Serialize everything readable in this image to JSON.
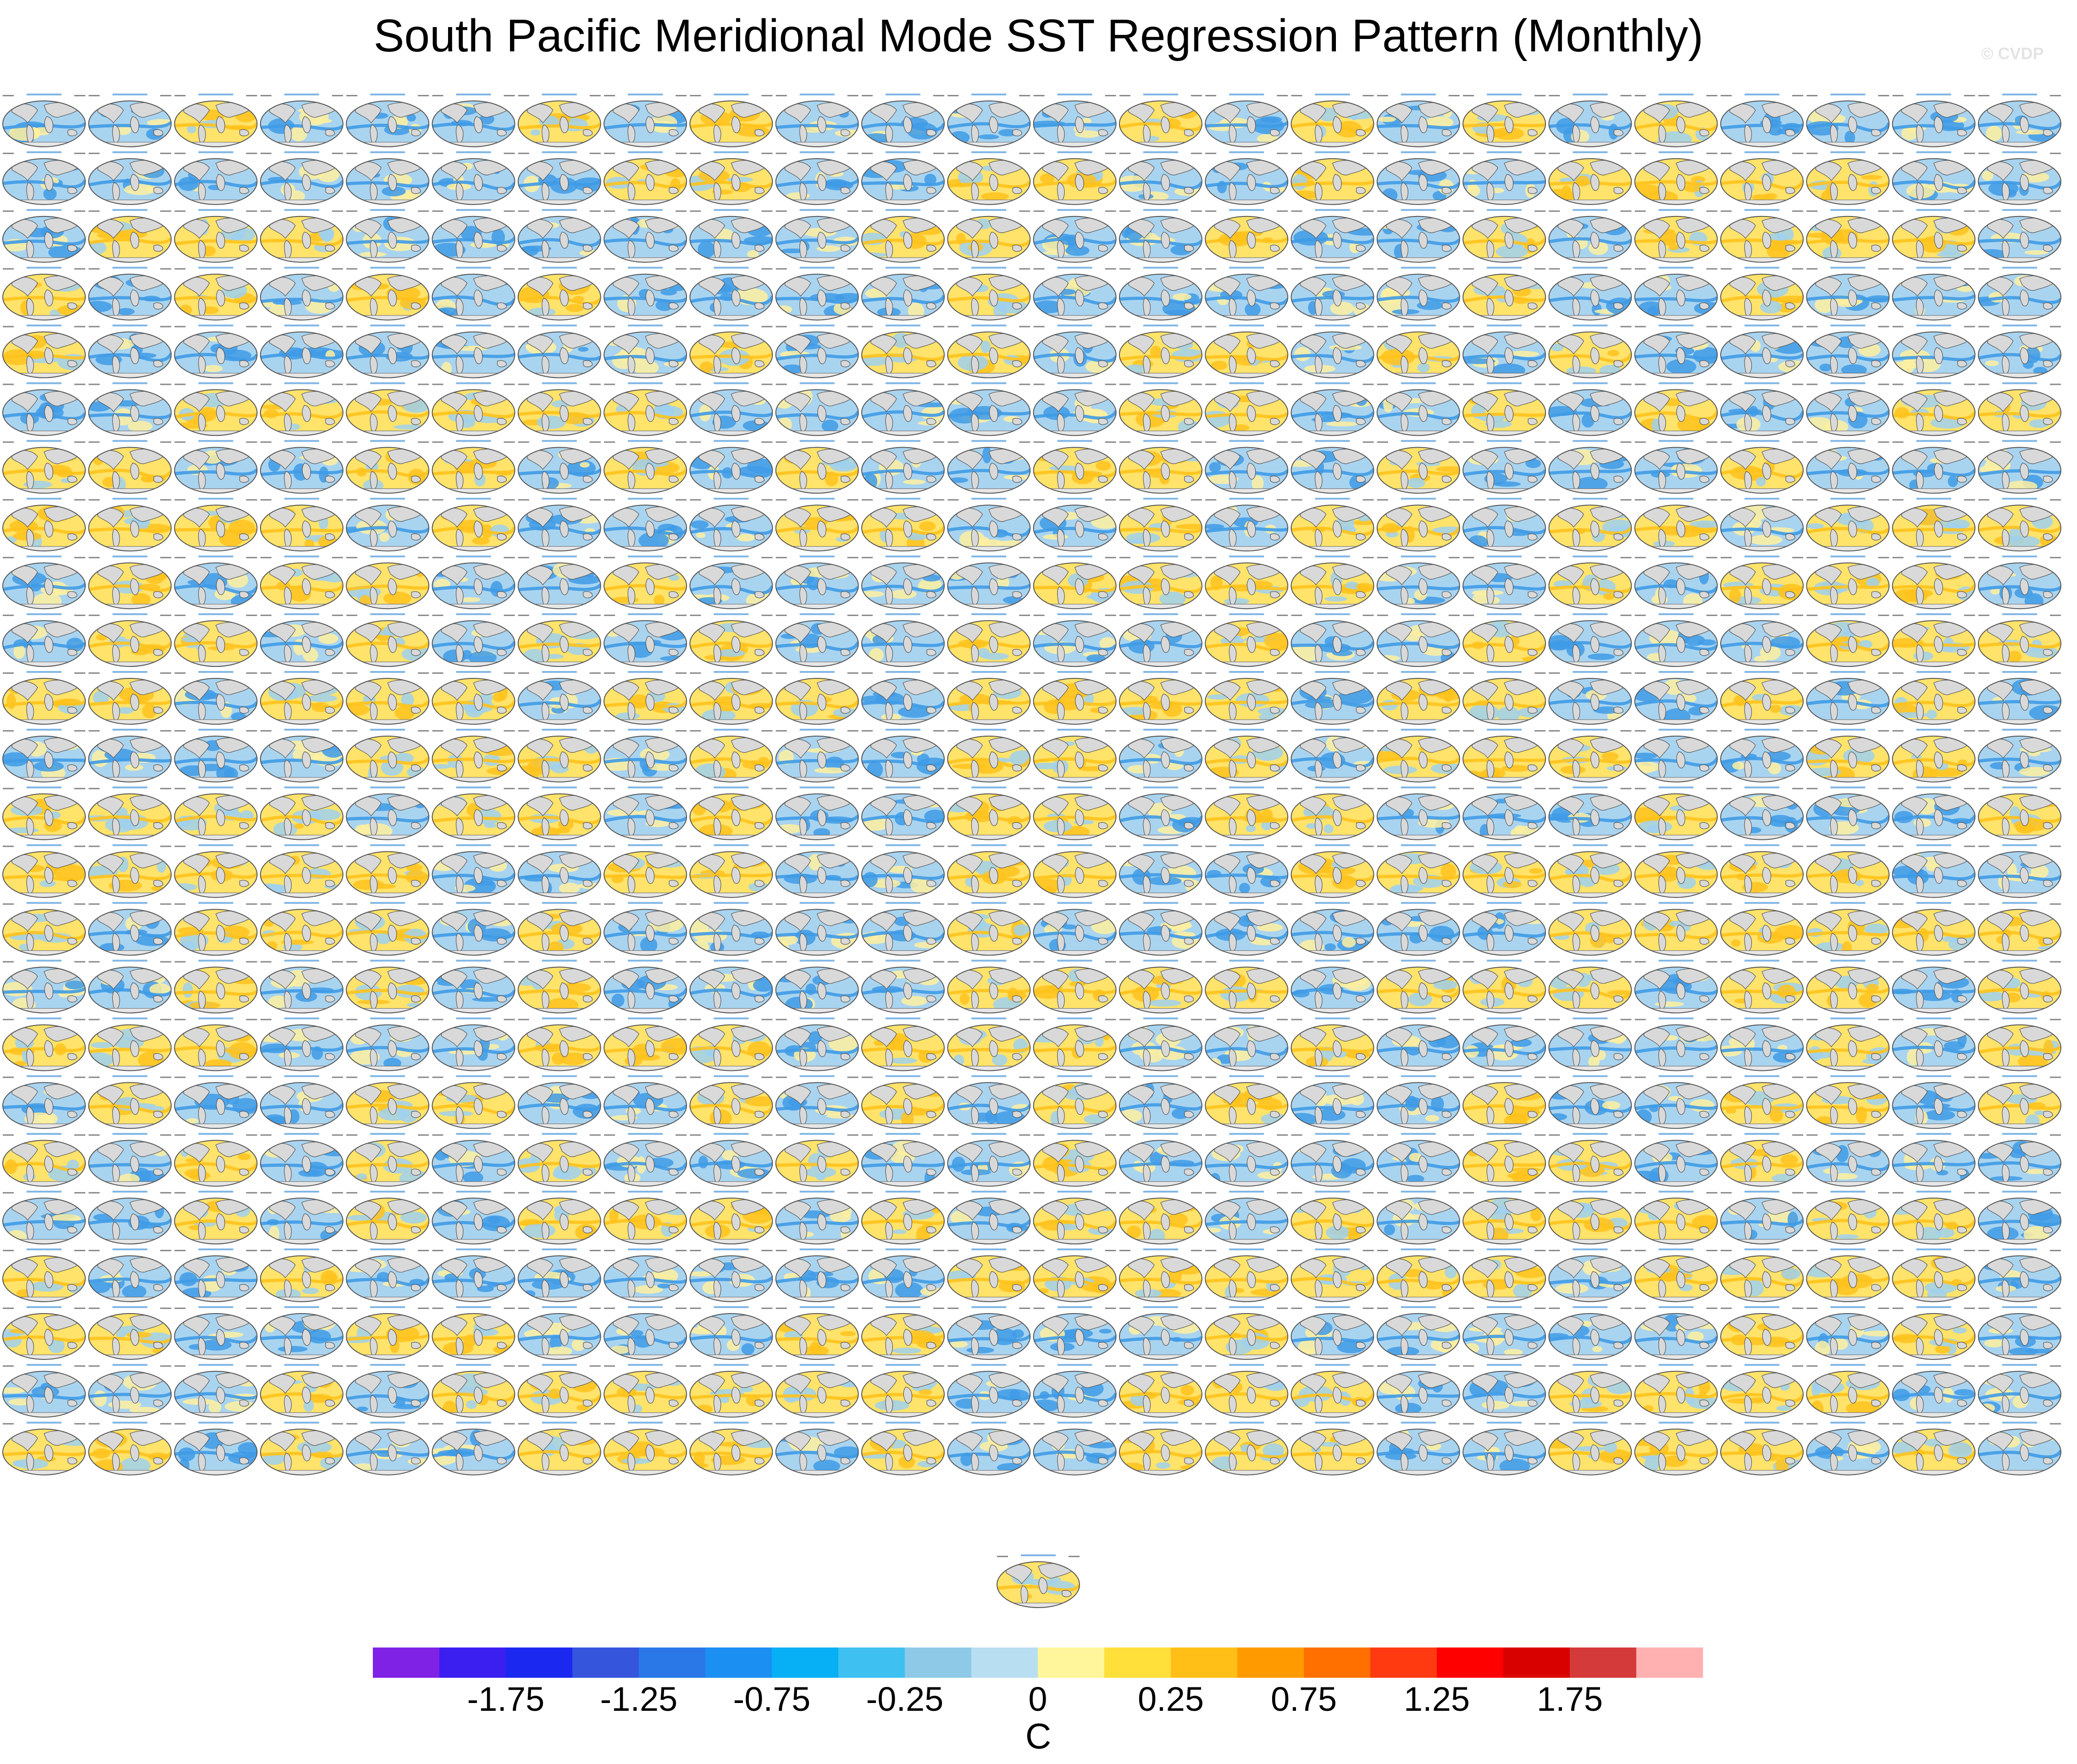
{
  "figure": {
    "title": "South Pacific Meridional Mode SST Regression Pattern (Monthly)",
    "watermark": "© CVDP",
    "panel_grid": {
      "rows": 24,
      "columns": 24,
      "extra_panels": 1,
      "content": "small global SST regression maps, mixed warm (yellow) and cool (blue) patterns"
    }
  },
  "colorbar": {
    "units": "C",
    "colors": [
      "#7f22e6",
      "#3b1ef0",
      "#1b28f0",
      "#3555dc",
      "#2a78e8",
      "#1b8ff2",
      "#07b0f4",
      "#3ec0f0",
      "#8ecae8",
      "#b8def2",
      "#fff59a",
      "#ffdf3a",
      "#ffbf16",
      "#ff9b00",
      "#ff7000",
      "#ff3a10",
      "#ff0000",
      "#d90000",
      "#d43a3a",
      "#ffb0b0"
    ],
    "labels": [
      "-1.75",
      "-1.25",
      "-0.75",
      "-0.25",
      "0",
      "0.25",
      "0.75",
      "1.25",
      "1.75"
    ]
  }
}
